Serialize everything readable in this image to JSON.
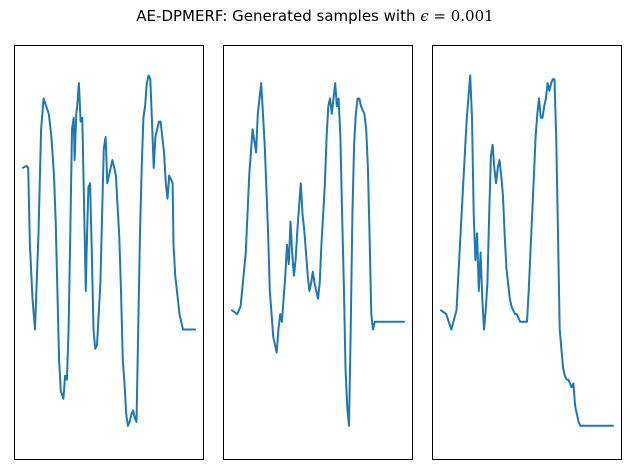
{
  "figure": {
    "title_prefix": "AE-DPMERF: Generated samples with ",
    "title_symbol": "ϵ",
    "title_suffix": " = 0.001"
  },
  "chart_data": [
    {
      "type": "line",
      "title": "",
      "xlabel": "",
      "ylabel": "",
      "xticks": [],
      "yticks": [],
      "grid": false,
      "xlim": [
        0,
        1
      ],
      "ylim": [
        0,
        1
      ],
      "series": [
        {
          "color": "#1f77b4",
          "x": [
            0.0,
            0.02,
            0.03,
            0.04,
            0.055,
            0.07,
            0.09,
            0.105,
            0.12,
            0.135,
            0.15,
            0.165,
            0.18,
            0.19,
            0.2,
            0.21,
            0.22,
            0.235,
            0.245,
            0.255,
            0.265,
            0.275,
            0.285,
            0.295,
            0.3,
            0.31,
            0.315,
            0.325,
            0.335,
            0.345,
            0.355,
            0.365,
            0.37,
            0.38,
            0.39,
            0.4,
            0.41,
            0.42,
            0.43,
            0.44,
            0.45,
            0.46,
            0.47,
            0.48,
            0.49,
            0.5,
            0.51,
            0.52,
            0.53,
            0.54,
            0.55,
            0.56,
            0.57,
            0.58,
            0.59,
            0.6,
            0.61,
            0.62,
            0.63,
            0.64,
            0.65,
            0.66,
            0.67,
            0.68,
            0.69,
            0.7,
            0.71,
            0.72,
            0.73,
            0.74,
            0.75,
            0.76,
            0.77,
            0.78,
            0.79,
            0.8,
            0.81,
            0.82,
            0.83,
            0.84,
            0.85,
            0.86,
            0.87,
            0.875,
            0.88,
            0.885,
            0.89,
            0.9,
            0.91,
            0.92,
            0.93,
            0.94,
            0.95,
            0.96,
            0.97,
            0.98,
            0.99,
            1.0
          ],
          "y": [
            0.72,
            0.725,
            0.72,
            0.52,
            0.38,
            0.3,
            0.55,
            0.82,
            0.9,
            0.88,
            0.86,
            0.8,
            0.7,
            0.58,
            0.4,
            0.22,
            0.14,
            0.12,
            0.18,
            0.17,
            0.3,
            0.55,
            0.82,
            0.85,
            0.74,
            0.86,
            0.88,
            0.94,
            0.84,
            0.85,
            0.62,
            0.4,
            0.5,
            0.67,
            0.68,
            0.5,
            0.3,
            0.25,
            0.26,
            0.34,
            0.42,
            0.6,
            0.77,
            0.8,
            0.68,
            0.7,
            0.72,
            0.74,
            0.72,
            0.7,
            0.62,
            0.54,
            0.4,
            0.22,
            0.16,
            0.08,
            0.05,
            0.06,
            0.08,
            0.09,
            0.07,
            0.06,
            0.3,
            0.55,
            0.72,
            0.85,
            0.88,
            0.94,
            0.96,
            0.95,
            0.84,
            0.72,
            0.8,
            0.82,
            0.84,
            0.84,
            0.8,
            0.76,
            0.68,
            0.64,
            0.7,
            0.69,
            0.68,
            0.52,
            0.48,
            0.44,
            0.42,
            0.38,
            0.34,
            0.32,
            0.3,
            0.3,
            0.3,
            0.3,
            0.3,
            0.3,
            0.3,
            0.3
          ]
        }
      ]
    },
    {
      "type": "line",
      "title": "",
      "xlabel": "",
      "ylabel": "",
      "xticks": [],
      "yticks": [],
      "grid": false,
      "xlim": [
        0,
        1
      ],
      "ylim": [
        0,
        1
      ],
      "series": [
        {
          "color": "#1f77b4",
          "x": [
            0.0,
            0.03,
            0.05,
            0.08,
            0.1,
            0.12,
            0.14,
            0.15,
            0.17,
            0.19,
            0.21,
            0.22,
            0.24,
            0.26,
            0.27,
            0.28,
            0.29,
            0.3,
            0.31,
            0.32,
            0.33,
            0.34,
            0.35,
            0.36,
            0.37,
            0.38,
            0.39,
            0.4,
            0.41,
            0.42,
            0.43,
            0.44,
            0.45,
            0.46,
            0.47,
            0.48,
            0.49,
            0.5,
            0.51,
            0.52,
            0.53,
            0.54,
            0.55,
            0.56,
            0.57,
            0.58,
            0.59,
            0.6,
            0.61,
            0.62,
            0.63,
            0.64,
            0.65,
            0.66,
            0.67,
            0.68,
            0.69,
            0.7,
            0.71,
            0.72,
            0.73,
            0.74,
            0.75,
            0.76,
            0.77,
            0.78,
            0.79,
            0.8,
            0.81,
            0.82,
            0.83,
            0.84,
            0.85,
            0.86,
            0.87,
            0.88,
            0.89,
            0.9,
            0.91,
            0.92,
            0.93,
            0.94,
            0.95,
            0.96,
            0.97,
            0.98,
            0.99,
            1.0
          ],
          "y": [
            0.35,
            0.34,
            0.36,
            0.5,
            0.7,
            0.82,
            0.76,
            0.86,
            0.94,
            0.78,
            0.55,
            0.4,
            0.28,
            0.24,
            0.3,
            0.34,
            0.32,
            0.38,
            0.44,
            0.52,
            0.47,
            0.58,
            0.5,
            0.44,
            0.48,
            0.56,
            0.62,
            0.68,
            0.6,
            0.56,
            0.5,
            0.44,
            0.4,
            0.42,
            0.45,
            0.42,
            0.4,
            0.38,
            0.42,
            0.52,
            0.6,
            0.68,
            0.8,
            0.88,
            0.9,
            0.86,
            0.9,
            0.94,
            0.88,
            0.9,
            0.8,
            0.6,
            0.42,
            0.2,
            0.1,
            0.05,
            0.3,
            0.6,
            0.78,
            0.86,
            0.9,
            0.9,
            0.88,
            0.87,
            0.86,
            0.82,
            0.72,
            0.54,
            0.34,
            0.3,
            0.32,
            0.32,
            0.32,
            0.32,
            0.32,
            0.32,
            0.32,
            0.32,
            0.32,
            0.32,
            0.32,
            0.32,
            0.32,
            0.32,
            0.32,
            0.32,
            0.32,
            0.32
          ]
        }
      ]
    },
    {
      "type": "line",
      "title": "",
      "xlabel": "",
      "ylabel": "",
      "xticks": [],
      "yticks": [],
      "grid": false,
      "xlim": [
        0,
        1
      ],
      "ylim": [
        0,
        1
      ],
      "series": [
        {
          "color": "#1f77b4",
          "x": [
            0.0,
            0.03,
            0.06,
            0.09,
            0.12,
            0.15,
            0.17,
            0.18,
            0.19,
            0.2,
            0.21,
            0.22,
            0.23,
            0.24,
            0.25,
            0.26,
            0.27,
            0.28,
            0.29,
            0.3,
            0.31,
            0.32,
            0.33,
            0.34,
            0.35,
            0.36,
            0.37,
            0.38,
            0.39,
            0.4,
            0.41,
            0.42,
            0.43,
            0.44,
            0.45,
            0.46,
            0.47,
            0.48,
            0.49,
            0.5,
            0.51,
            0.52,
            0.53,
            0.54,
            0.55,
            0.56,
            0.57,
            0.58,
            0.59,
            0.6,
            0.61,
            0.62,
            0.63,
            0.64,
            0.65,
            0.66,
            0.67,
            0.68,
            0.69,
            0.7,
            0.71,
            0.72,
            0.73,
            0.74,
            0.75,
            0.76,
            0.77,
            0.78,
            0.79,
            0.8,
            0.81,
            0.82,
            0.83,
            0.84,
            0.85,
            0.86,
            0.87,
            0.88,
            0.89,
            0.9,
            0.91,
            0.92,
            0.93,
            0.94,
            0.95,
            0.96,
            0.97,
            0.98,
            0.99,
            1.0
          ],
          "y": [
            0.35,
            0.34,
            0.3,
            0.35,
            0.6,
            0.85,
            0.96,
            0.85,
            0.6,
            0.48,
            0.55,
            0.4,
            0.5,
            0.38,
            0.3,
            0.35,
            0.42,
            0.6,
            0.75,
            0.78,
            0.72,
            0.68,
            0.72,
            0.74,
            0.7,
            0.65,
            0.55,
            0.46,
            0.42,
            0.38,
            0.36,
            0.35,
            0.34,
            0.34,
            0.33,
            0.32,
            0.32,
            0.32,
            0.32,
            0.32,
            0.4,
            0.5,
            0.6,
            0.7,
            0.8,
            0.86,
            0.9,
            0.85,
            0.85,
            0.88,
            0.9,
            0.94,
            0.92,
            0.94,
            0.95,
            0.95,
            0.8,
            0.55,
            0.3,
            0.25,
            0.2,
            0.18,
            0.17,
            0.17,
            0.16,
            0.15,
            0.16,
            0.1,
            0.08,
            0.06,
            0.05,
            0.05,
            0.05,
            0.05,
            0.05,
            0.05,
            0.05,
            0.05,
            0.05,
            0.05,
            0.05,
            0.05,
            0.05,
            0.05,
            0.05,
            0.05,
            0.05,
            0.05,
            0.05,
            0.05
          ]
        }
      ]
    }
  ]
}
